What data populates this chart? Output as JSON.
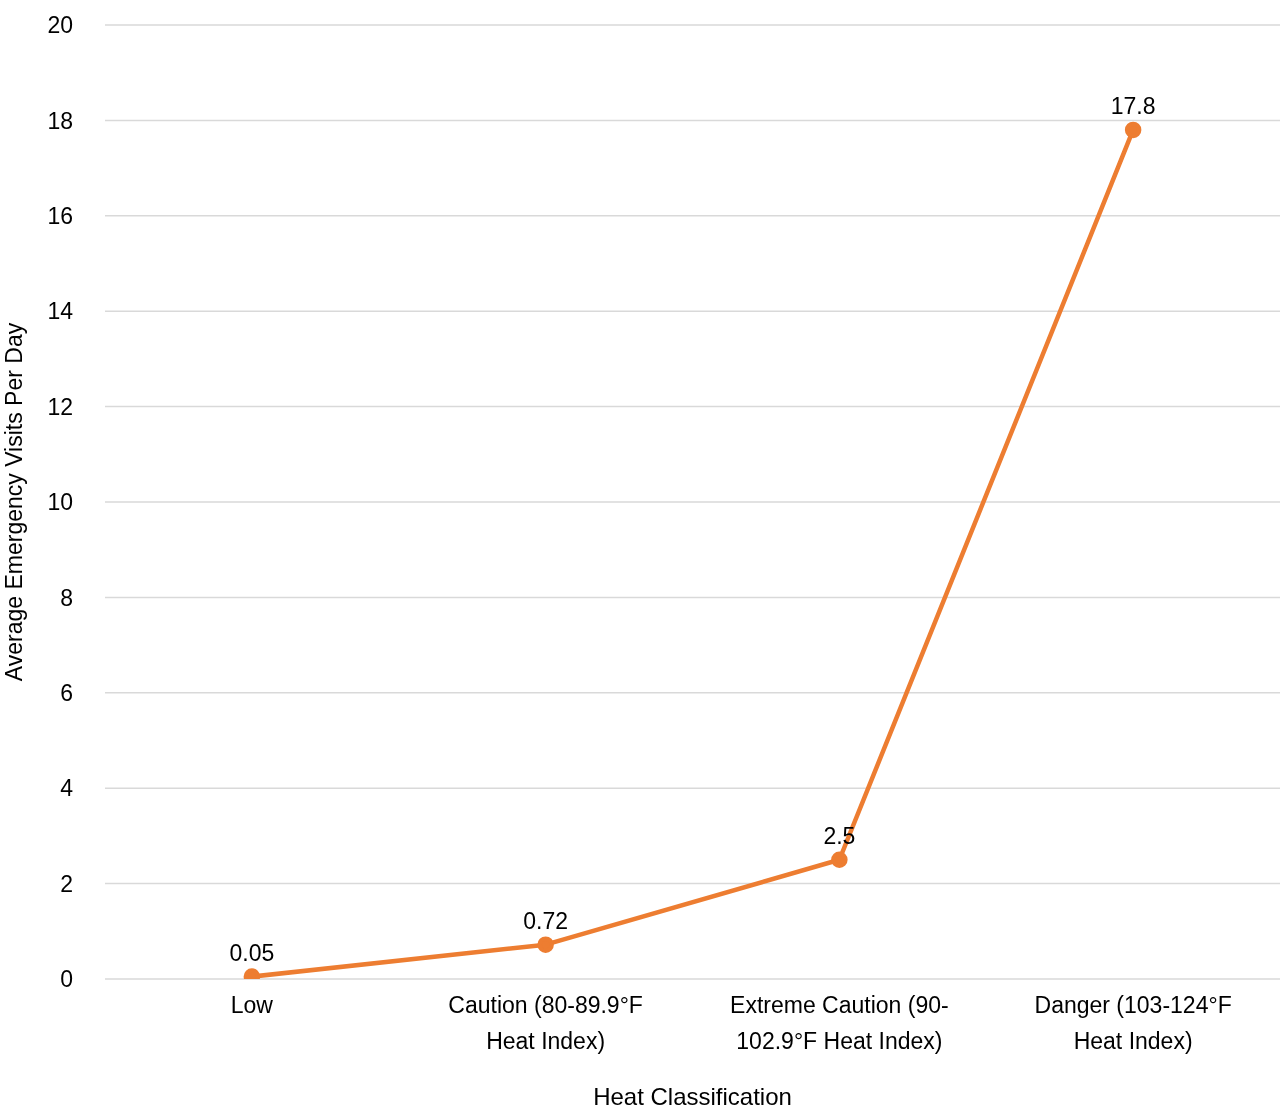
{
  "chart_data": {
    "type": "line",
    "xlabel": "Heat Classification",
    "ylabel": "Average Emergency Visits Per Day",
    "categories": [
      "Low",
      "Caution (80-89.9°F Heat Index)",
      "Extreme Caution (90-102.9°F Heat Index)",
      "Danger (103-124°F Heat Index)"
    ],
    "series": [
      {
        "color": "#ed7d31",
        "values": [
          0.05,
          0.72,
          2.5,
          17.8
        ]
      }
    ],
    "ylim": [
      0,
      20
    ],
    "yticks": [
      0,
      2,
      4,
      6,
      8,
      10,
      12,
      14,
      16,
      18,
      20
    ],
    "grid": "y",
    "legend": false,
    "marker": "circle",
    "line_style": "solid",
    "data_labels": true
  }
}
